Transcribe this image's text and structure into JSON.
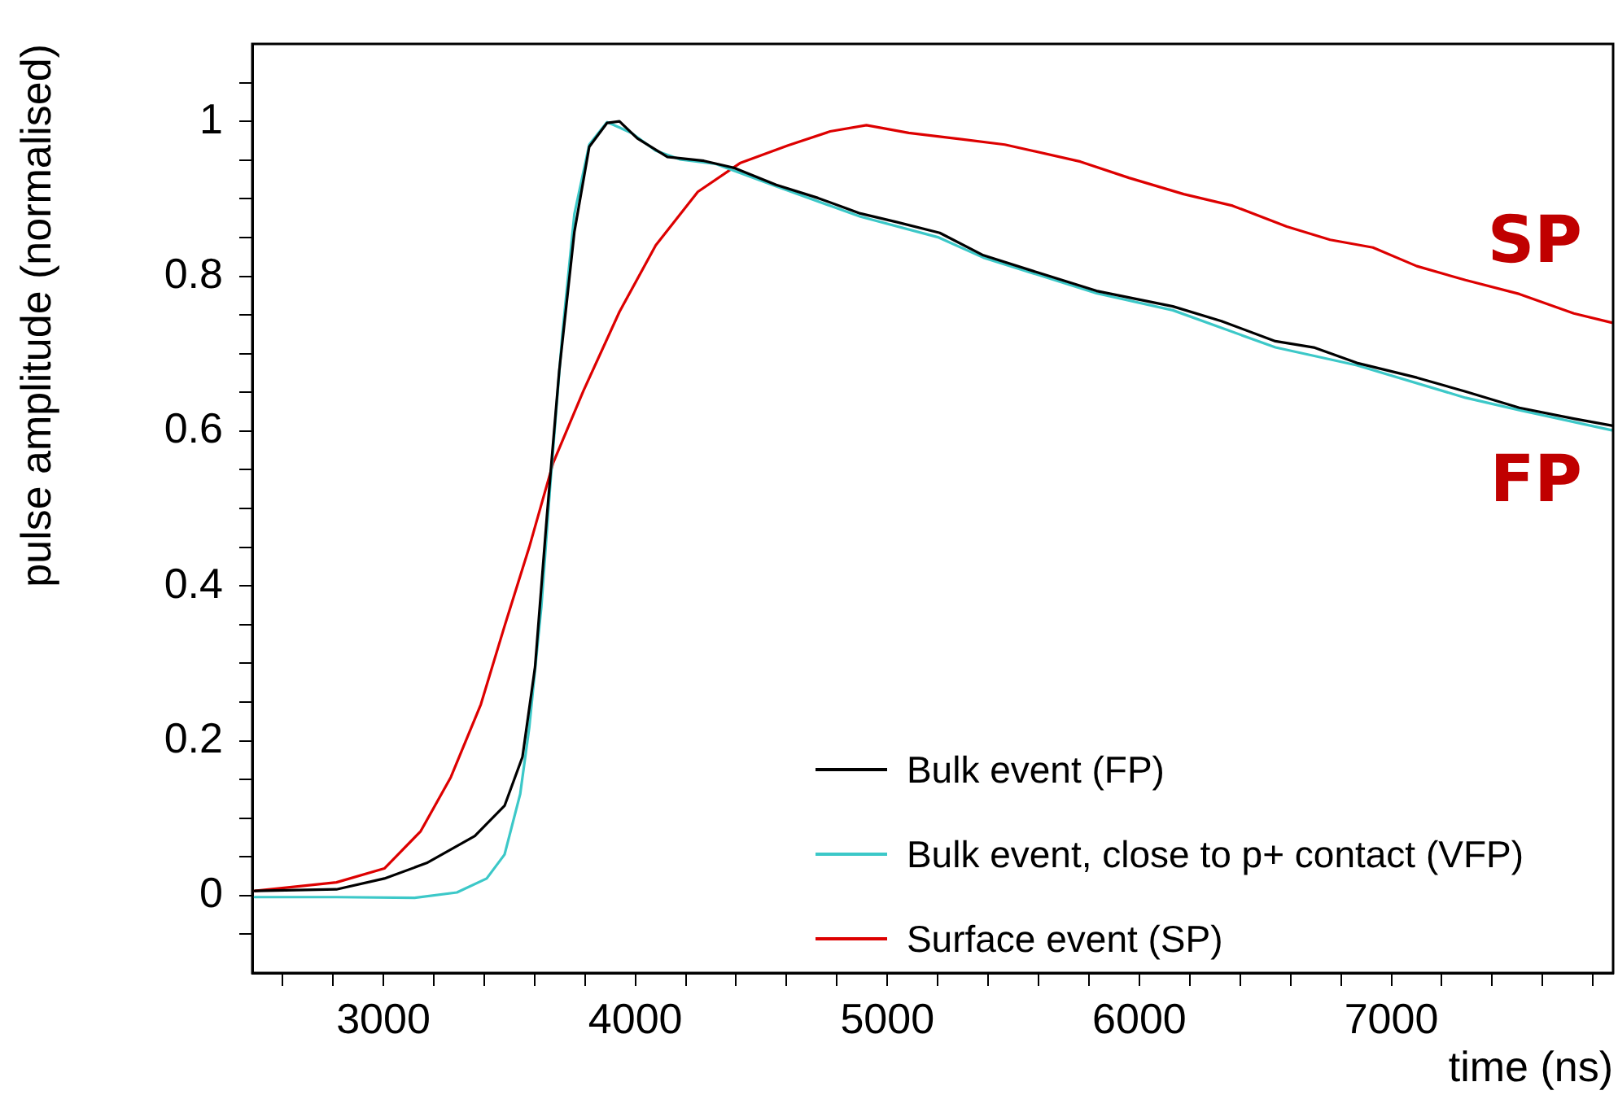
{
  "chart_data": {
    "type": "line",
    "xlabel": "time (ns)",
    "ylabel": "pulse amplitude (normalised)",
    "xlim": [
      2480,
      7880
    ],
    "ylim": [
      -0.1,
      1.1
    ],
    "xticks": [
      {
        "value": 2600,
        "label": null
      },
      {
        "value": 2800,
        "label": null
      },
      3000,
      {
        "value": 3200,
        "label": null
      },
      {
        "value": 3400,
        "label": null
      },
      {
        "value": 3600,
        "label": null
      },
      {
        "value": 3800,
        "label": null
      },
      4000,
      {
        "value": 4200,
        "label": null
      },
      {
        "value": 4400,
        "label": null
      },
      {
        "value": 4600,
        "label": null
      },
      {
        "value": 4800,
        "label": null
      },
      5000,
      {
        "value": 5200,
        "label": null
      },
      {
        "value": 5400,
        "label": null
      },
      {
        "value": 5600,
        "label": null
      },
      {
        "value": 5800,
        "label": null
      },
      6000,
      {
        "value": 6200,
        "label": null
      },
      {
        "value": 6400,
        "label": null
      },
      {
        "value": 6600,
        "label": null
      },
      {
        "value": 6800,
        "label": null
      },
      7000,
      {
        "value": 7200,
        "label": null
      },
      {
        "value": 7400,
        "label": null
      },
      {
        "value": 7600,
        "label": null
      },
      {
        "value": 7800,
        "label": null
      }
    ],
    "yticks": [
      {
        "value": -0.05,
        "label": null
      },
      0,
      {
        "value": 0.05,
        "label": null
      },
      {
        "value": 0.1,
        "label": null
      },
      {
        "value": 0.15,
        "label": null
      },
      0.2,
      {
        "value": 0.25,
        "label": null
      },
      {
        "value": 0.3,
        "label": null
      },
      {
        "value": 0.35,
        "label": null
      },
      0.4,
      {
        "value": 0.45,
        "label": null
      },
      {
        "value": 0.5,
        "label": null
      },
      {
        "value": 0.55,
        "label": null
      },
      0.6,
      {
        "value": 0.65,
        "label": null
      },
      {
        "value": 0.7,
        "label": null
      },
      {
        "value": 0.75,
        "label": null
      },
      0.8,
      {
        "value": 0.85,
        "label": null
      },
      {
        "value": 0.9,
        "label": null
      },
      {
        "value": 0.95,
        "label": null
      },
      1,
      {
        "value": 1.05,
        "label": null
      }
    ],
    "grid": false,
    "legend": "bottom right",
    "marker": "none",
    "line_style": "solid",
    "annotations": [
      "SP",
      "FP"
    ],
    "series": [
      {
        "name": "Bulk event (FP)",
        "color": "#000000",
        "x": [
          2490,
          2814,
          3004,
          3172,
          3363,
          3481,
          3552,
          3602,
          3649,
          3698,
          3758,
          3817,
          3888,
          3937,
          4008,
          4127,
          4272,
          4391,
          4559,
          4725,
          4893,
          5036,
          5208,
          5381,
          5595,
          5830,
          6133,
          6326,
          6540,
          6692,
          6863,
          7101,
          7294,
          7508,
          7724,
          7875
        ],
        "values": [
          0.006,
          0.008,
          0.022,
          0.042,
          0.077,
          0.116,
          0.179,
          0.295,
          0.49,
          0.678,
          0.857,
          0.967,
          0.998,
          1.0,
          0.978,
          0.954,
          0.949,
          0.94,
          0.918,
          0.901,
          0.881,
          0.87,
          0.856,
          0.827,
          0.805,
          0.781,
          0.761,
          0.742,
          0.716,
          0.708,
          0.688,
          0.669,
          0.651,
          0.63,
          0.616,
          0.607
        ]
      },
      {
        "name": "Bulk event, close to p+ contact (VFP)",
        "color": "#3cc8c8",
        "x": [
          2490,
          2814,
          3124,
          3292,
          3410,
          3481,
          3543,
          3579,
          3627,
          3662,
          3710,
          3758,
          3817,
          3888,
          3985,
          4081,
          4176,
          4319,
          4559,
          4893,
          5204,
          5381,
          5595,
          5830,
          6133,
          6540,
          6863,
          7294,
          7508,
          7875
        ],
        "values": [
          -0.002,
          -0.002,
          -0.003,
          0.004,
          0.022,
          0.053,
          0.131,
          0.217,
          0.373,
          0.529,
          0.724,
          0.88,
          0.97,
          0.999,
          0.985,
          0.962,
          0.951,
          0.945,
          0.916,
          0.877,
          0.85,
          0.824,
          0.802,
          0.778,
          0.756,
          0.708,
          0.685,
          0.643,
          0.627,
          0.601
        ]
      },
      {
        "name": "Surface event (SP)",
        "color": "#dd0000",
        "x": [
          2490,
          2814,
          3004,
          3148,
          3268,
          3387,
          3481,
          3579,
          3674,
          3794,
          3937,
          4081,
          4248,
          4415,
          4606,
          4773,
          4917,
          5085,
          5294,
          5466,
          5766,
          5959,
          6176,
          6370,
          6585,
          6757,
          6927,
          7101,
          7294,
          7508,
          7724,
          7875
        ],
        "values": [
          0.006,
          0.017,
          0.035,
          0.083,
          0.153,
          0.247,
          0.348,
          0.45,
          0.559,
          0.652,
          0.754,
          0.84,
          0.909,
          0.946,
          0.969,
          0.987,
          0.995,
          0.985,
          0.977,
          0.97,
          0.948,
          0.927,
          0.906,
          0.891,
          0.864,
          0.847,
          0.837,
          0.813,
          0.795,
          0.777,
          0.752,
          0.74
        ]
      }
    ]
  }
}
